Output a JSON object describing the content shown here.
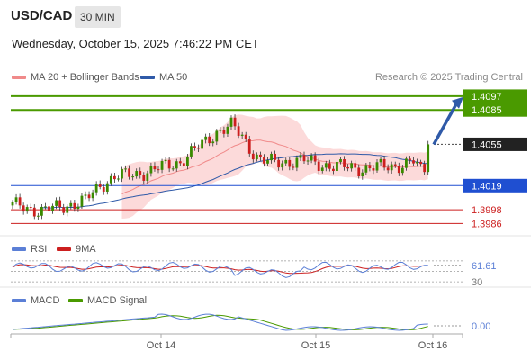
{
  "header": {
    "symbol": "USD/CAD",
    "interval": "30 MIN",
    "datetime": "Wednesday, October 15, 2025 7:46:22 PM CET",
    "credit": "Research © 2025 Trading Central"
  },
  "legend": {
    "ma20": "MA 20 + Bollinger Bands",
    "ma50": "MA 50",
    "rsi": "RSI",
    "rsi_ma": "9MA",
    "macd": "MACD",
    "macd_signal": "MACD Signal"
  },
  "colors": {
    "green_level": "#4a9a00",
    "blue_level": "#1f4fd1",
    "red_level": "#cc1f1f",
    "band_fill": "#fbd3d3",
    "ma20": "#f08a8a",
    "ma50": "#2f5aa8",
    "up_candle": "#3a8a00",
    "down_candle": "#cc1f1f",
    "arrow": "#2f5aa8",
    "rsi": "#5b7fd6",
    "rsi_ma": "#cc1f1f",
    "macd": "#5b7fd6",
    "macd_signal": "#4a9a00"
  },
  "chart_data": {
    "type": "candlestick",
    "price_axis": {
      "min": 1.398,
      "max": 1.4104
    },
    "x_ticks": [
      "Oct 14",
      "Oct 15",
      "Oct 16"
    ],
    "levels": [
      {
        "value": 1.4097,
        "label": "1.4097",
        "kind": "resistance"
      },
      {
        "value": 1.4085,
        "label": "1.4085",
        "kind": "resistance"
      },
      {
        "value": 1.4055,
        "label": "1.4055",
        "kind": "last"
      },
      {
        "value": 1.4019,
        "label": "1.4019",
        "kind": "pivot"
      },
      {
        "value": 1.3998,
        "label": "1.3998",
        "kind": "support"
      },
      {
        "value": 1.3986,
        "label": "1.3986",
        "kind": "support"
      }
    ],
    "anchors": [
      [
        0,
        1.4002
      ],
      [
        8,
        1.3997
      ],
      [
        14,
        1.4001
      ],
      [
        20,
        1.4006
      ],
      [
        24,
        1.4019
      ],
      [
        28,
        1.4027
      ],
      [
        34,
        1.4029
      ],
      [
        40,
        1.4034
      ],
      [
        46,
        1.404
      ],
      [
        52,
        1.4055
      ],
      [
        56,
        1.4066
      ],
      [
        60,
        1.4071
      ],
      [
        63,
        1.4062
      ],
      [
        65,
        1.4052
      ],
      [
        68,
        1.4041
      ],
      [
        72,
        1.4039
      ],
      [
        76,
        1.404
      ],
      [
        80,
        1.4041
      ],
      [
        84,
        1.4038
      ],
      [
        88,
        1.4036
      ],
      [
        92,
        1.4035
      ],
      [
        96,
        1.4034
      ],
      [
        100,
        1.4035
      ],
      [
        104,
        1.4036
      ],
      [
        108,
        1.4038
      ],
      [
        110,
        1.404
      ],
      [
        112,
        1.4032
      ],
      [
        113,
        1.4033
      ],
      [
        114,
        1.4055
      ]
    ],
    "rsi": {
      "last": 61.61,
      "label": "61.61",
      "levels": [
        70,
        50,
        30
      ],
      "level_labels": [
        "",
        "",
        "30"
      ]
    },
    "macd": {
      "last": 0.0,
      "label": "0.00"
    }
  }
}
